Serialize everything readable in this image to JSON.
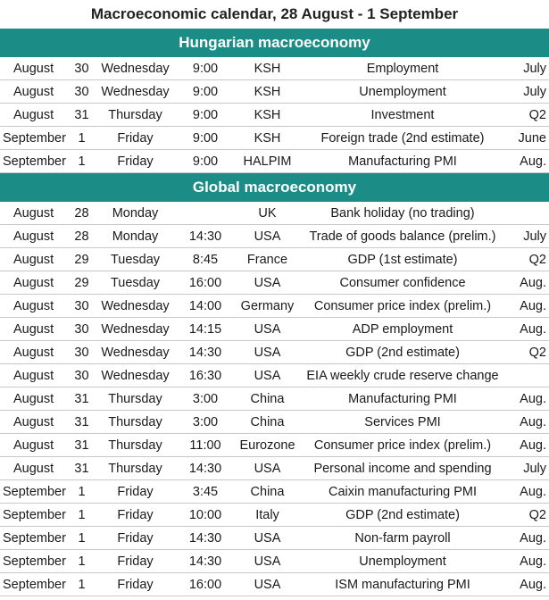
{
  "title": "Macroeconomic calendar, 28 August - 1 September",
  "sections": [
    {
      "heading": "Hungarian macroeconomy",
      "rows": [
        {
          "month": "August",
          "day": "30",
          "weekday": "Wednesday",
          "time": "9:00",
          "source": "KSH",
          "indicator": "Employment",
          "period": "July"
        },
        {
          "month": "August",
          "day": "30",
          "weekday": "Wednesday",
          "time": "9:00",
          "source": "KSH",
          "indicator": "Unemployment",
          "period": "July"
        },
        {
          "month": "August",
          "day": "31",
          "weekday": "Thursday",
          "time": "9:00",
          "source": "KSH",
          "indicator": "Investment",
          "period": "Q2"
        },
        {
          "month": "September",
          "day": "1",
          "weekday": "Friday",
          "time": "9:00",
          "source": "KSH",
          "indicator": "Foreign trade (2nd estimate)",
          "period": "June"
        },
        {
          "month": "September",
          "day": "1",
          "weekday": "Friday",
          "time": "9:00",
          "source": "HALPIM",
          "indicator": "Manufacturing PMI",
          "period": "Aug."
        }
      ]
    },
    {
      "heading": "Global macroeconomy",
      "rows": [
        {
          "month": "August",
          "day": "28",
          "weekday": "Monday",
          "time": "",
          "source": "UK",
          "indicator": "Bank holiday (no trading)",
          "period": ""
        },
        {
          "month": "August",
          "day": "28",
          "weekday": "Monday",
          "time": "14:30",
          "source": "USA",
          "indicator": "Trade of goods balance (prelim.)",
          "period": "July"
        },
        {
          "month": "August",
          "day": "29",
          "weekday": "Tuesday",
          "time": "8:45",
          "source": "France",
          "indicator": "GDP (1st estimate)",
          "period": "Q2"
        },
        {
          "month": "August",
          "day": "29",
          "weekday": "Tuesday",
          "time": "16:00",
          "source": "USA",
          "indicator": "Consumer confidence",
          "period": "Aug."
        },
        {
          "month": "August",
          "day": "30",
          "weekday": "Wednesday",
          "time": "14:00",
          "source": "Germany",
          "indicator": "Consumer price index (prelim.)",
          "period": "Aug."
        },
        {
          "month": "August",
          "day": "30",
          "weekday": "Wednesday",
          "time": "14:15",
          "source": "USA",
          "indicator": "ADP employment",
          "period": "Aug."
        },
        {
          "month": "August",
          "day": "30",
          "weekday": "Wednesday",
          "time": "14:30",
          "source": "USA",
          "indicator": "GDP (2nd estimate)",
          "period": "Q2"
        },
        {
          "month": "August",
          "day": "30",
          "weekday": "Wednesday",
          "time": "16:30",
          "source": "USA",
          "indicator": "EIA weekly crude reserve change",
          "period": ""
        },
        {
          "month": "August",
          "day": "31",
          "weekday": "Thursday",
          "time": "3:00",
          "source": "China",
          "indicator": "Manufacturing PMI",
          "period": "Aug."
        },
        {
          "month": "August",
          "day": "31",
          "weekday": "Thursday",
          "time": "3:00",
          "source": "China",
          "indicator": "Services PMI",
          "period": "Aug."
        },
        {
          "month": "August",
          "day": "31",
          "weekday": "Thursday",
          "time": "11:00",
          "source": "Eurozone",
          "indicator": "Consumer price index (prelim.)",
          "period": "Aug."
        },
        {
          "month": "August",
          "day": "31",
          "weekday": "Thursday",
          "time": "14:30",
          "source": "USA",
          "indicator": "Personal income and spending",
          "period": "July"
        },
        {
          "month": "September",
          "day": "1",
          "weekday": "Friday",
          "time": "3:45",
          "source": "China",
          "indicator": "Caixin manufacturing PMI",
          "period": "Aug."
        },
        {
          "month": "September",
          "day": "1",
          "weekday": "Friday",
          "time": "10:00",
          "source": "Italy",
          "indicator": "GDP (2nd estimate)",
          "period": "Q2"
        },
        {
          "month": "September",
          "day": "1",
          "weekday": "Friday",
          "time": "14:30",
          "source": "USA",
          "indicator": "Non-farm payroll",
          "period": "Aug."
        },
        {
          "month": "September",
          "day": "1",
          "weekday": "Friday",
          "time": "14:30",
          "source": "USA",
          "indicator": "Unemployment",
          "period": "Aug."
        },
        {
          "month": "September",
          "day": "1",
          "weekday": "Friday",
          "time": "16:00",
          "source": "USA",
          "indicator": "ISM manufacturing PMI",
          "period": "Aug."
        }
      ]
    }
  ]
}
